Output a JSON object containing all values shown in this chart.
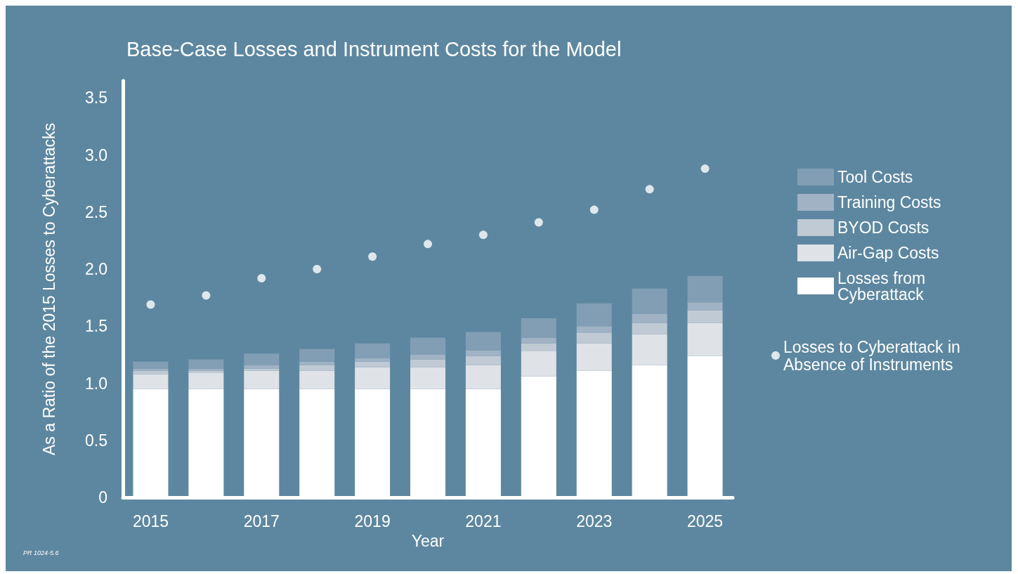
{
  "chart_data": {
    "type": "bar",
    "title": "Base-Case Losses and Instrument Costs for the Model",
    "xlabel": "Year",
    "ylabel": "As a Ratio of the 2015 Losses to Cyberattacks",
    "annotations": [
      "PR 1024-5.6"
    ],
    "categories": [
      "2015",
      null,
      "2017",
      null,
      "2019",
      null,
      "2021",
      null,
      "2023",
      null,
      "2025"
    ],
    "ylim": [
      0,
      3.65
    ],
    "yticks": [
      0,
      0.5,
      {
        "value": 1,
        "label": "1.0"
      },
      1.5,
      {
        "value": 2,
        "label": "2.0"
      },
      2.5,
      {
        "value": 3,
        "label": "3.0"
      },
      3.5
    ],
    "stacked": true,
    "legend": "right",
    "series": [
      {
        "name": "Losses from Cyberattack",
        "color": "#ffffff",
        "values": [
          0.95,
          0.95,
          0.95,
          0.95,
          0.95,
          0.95,
          0.95,
          1.06,
          1.11,
          1.16,
          1.24
        ]
      },
      {
        "name": "Air-Gap Costs",
        "color": "#dfe2e7",
        "values": [
          0.13,
          0.14,
          0.16,
          0.16,
          0.19,
          0.19,
          0.21,
          0.22,
          0.24,
          0.27,
          0.29
        ]
      },
      {
        "name": "BYOD Costs",
        "color": "#c0cad4",
        "values": [
          0.03,
          0.02,
          0.02,
          0.05,
          0.05,
          0.07,
          0.08,
          0.07,
          0.09,
          0.1,
          0.11
        ]
      },
      {
        "name": "Training Costs",
        "color": "#a0b2c4",
        "values": [
          0.02,
          0.02,
          0.03,
          0.03,
          0.03,
          0.04,
          0.05,
          0.05,
          0.06,
          0.08,
          0.07
        ]
      },
      {
        "name": "Tool Costs",
        "color": "#829eb4",
        "values": [
          0.06,
          0.08,
          0.1,
          0.11,
          0.13,
          0.15,
          0.16,
          0.17,
          0.2,
          0.22,
          0.23
        ]
      },
      {
        "name": "Losses to Cyberattack in Absence of Instruments",
        "type": "scatter",
        "marker": "circle",
        "color": "#ffffff",
        "values": [
          1.69,
          1.77,
          1.92,
          2.0,
          2.11,
          2.22,
          2.3,
          2.41,
          2.52,
          2.7,
          2.88
        ]
      }
    ]
  }
}
